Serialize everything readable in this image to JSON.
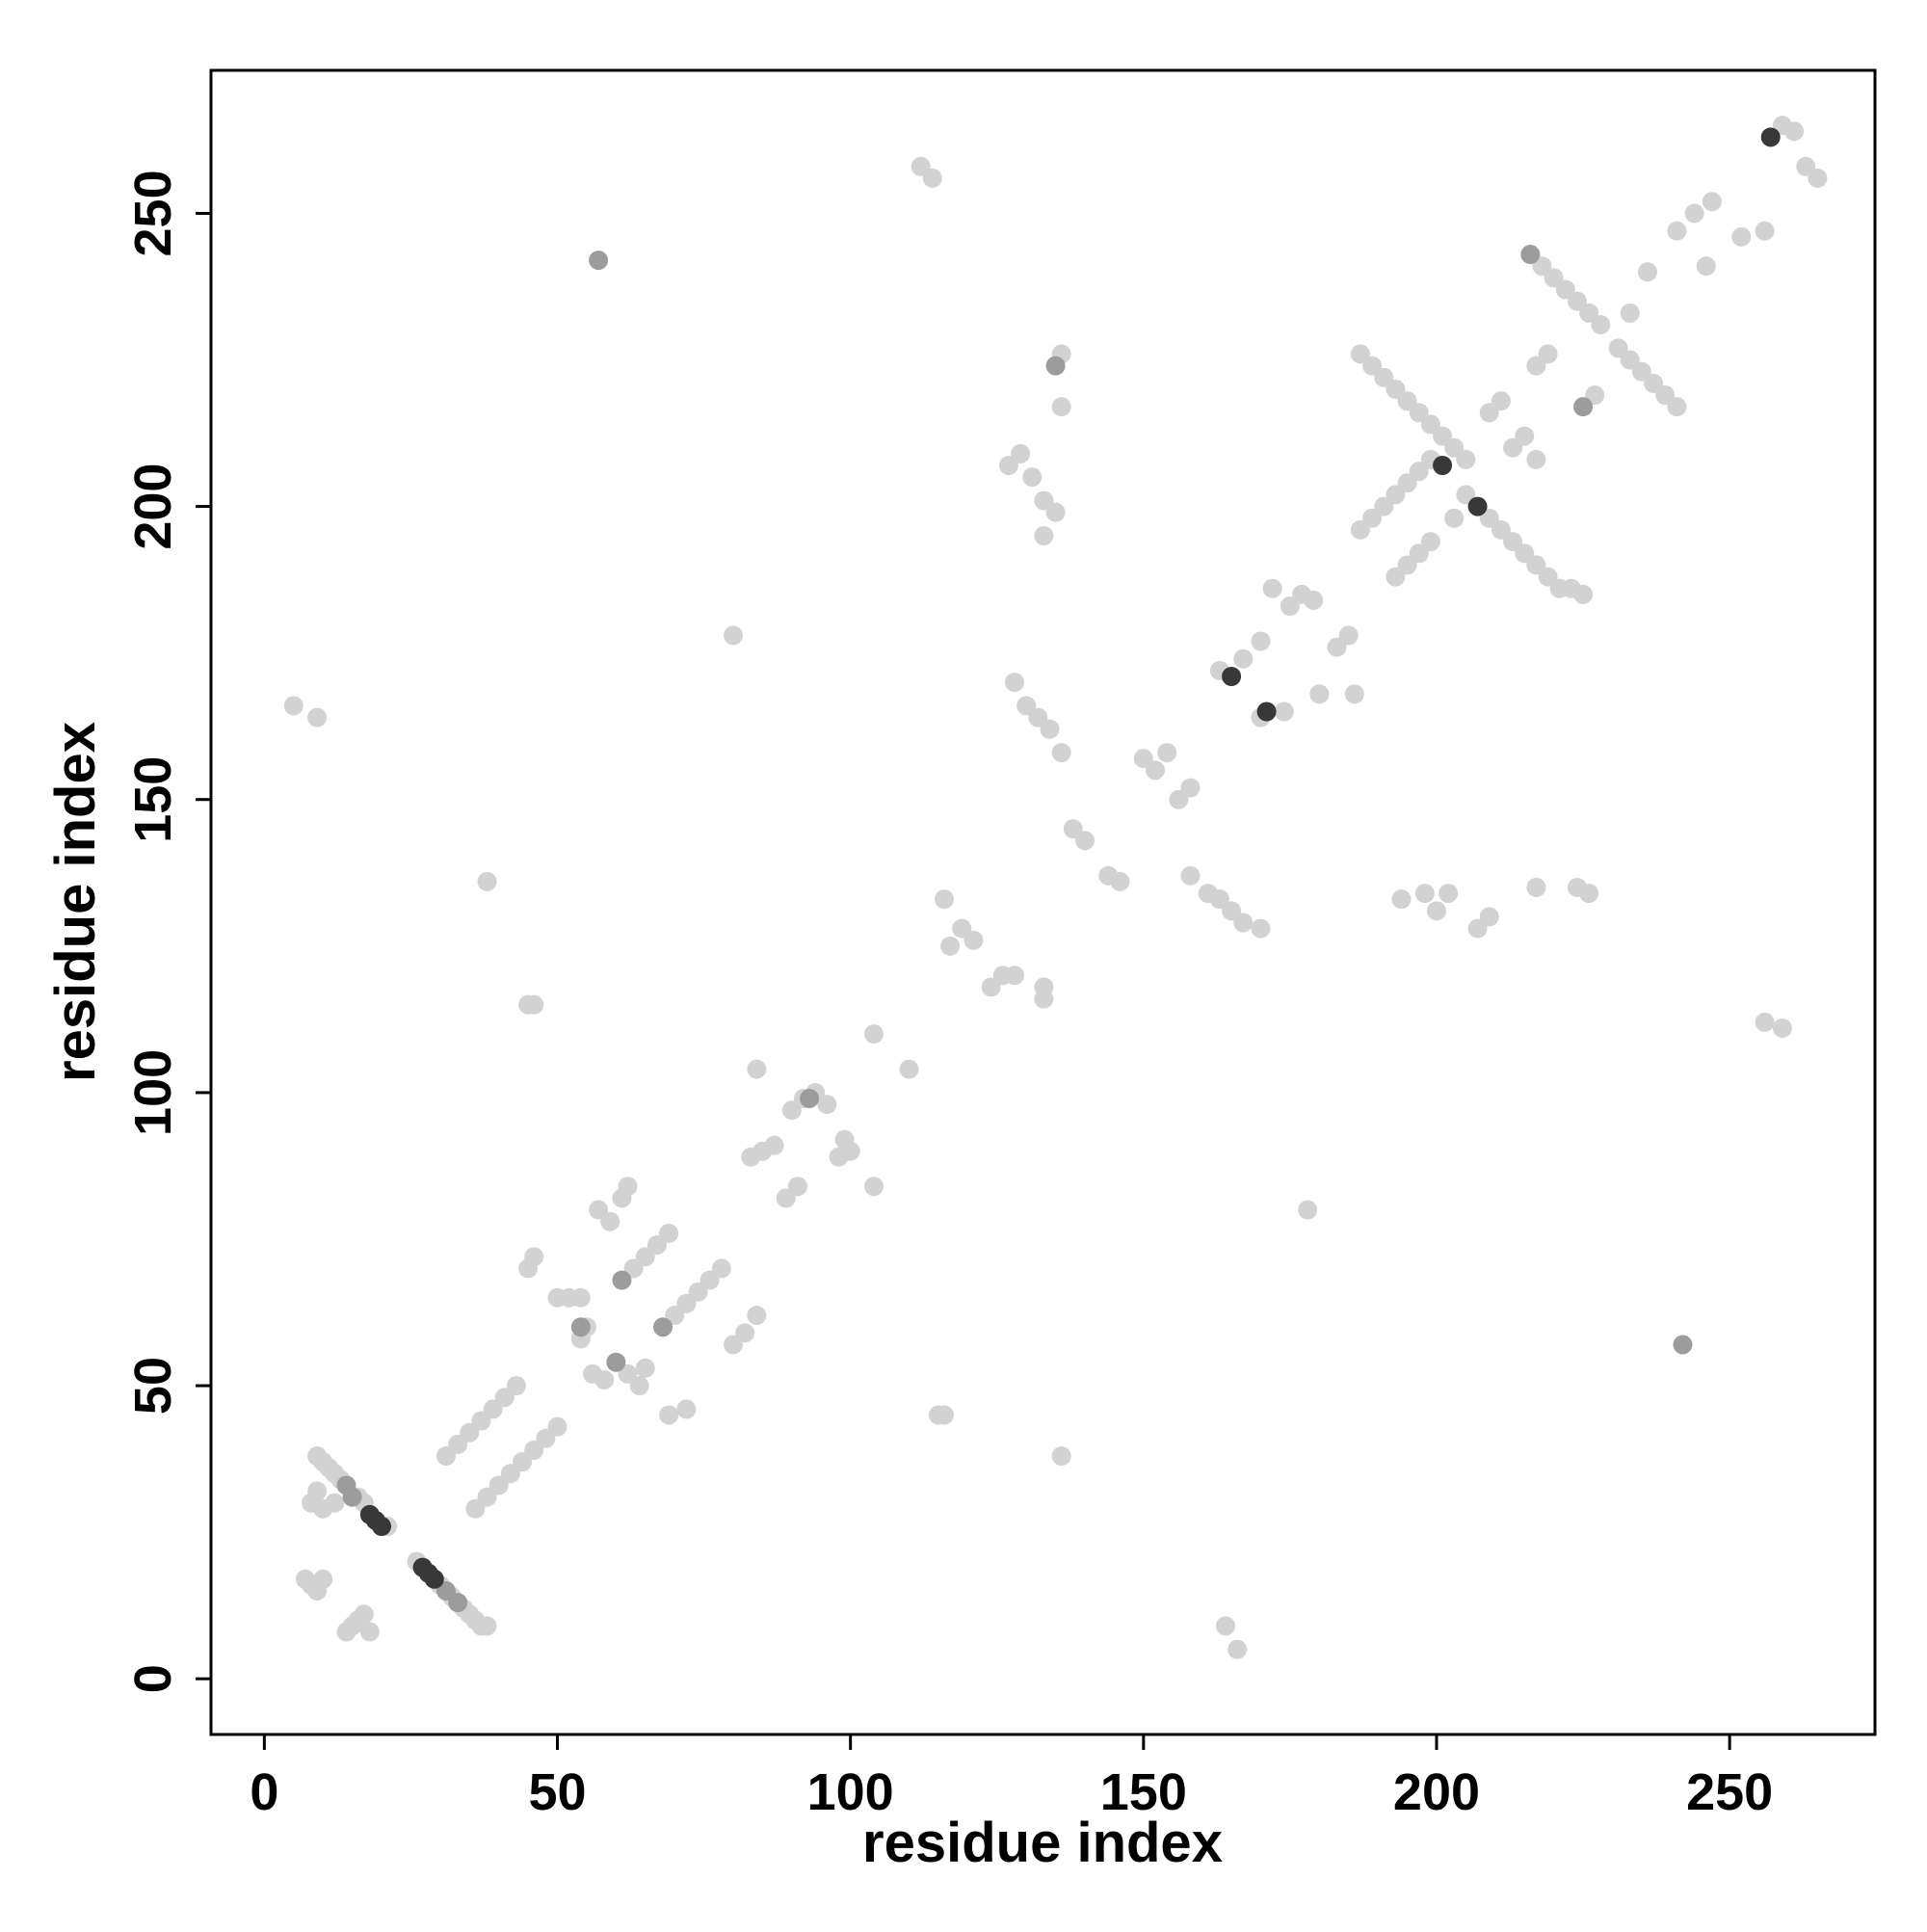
{
  "chart_data": {
    "type": "scatter",
    "xlabel": "residue index",
    "ylabel": "residue index",
    "xlim": [
      -9.1,
      274.8
    ],
    "ylim": [
      -9.5,
      274.4
    ],
    "xticks": [
      0,
      50,
      100,
      150,
      200,
      250
    ],
    "yticks": [
      0,
      50,
      100,
      150,
      200,
      250
    ],
    "grid": false,
    "series": [
      {
        "color": "#d2d2d2",
        "x": [
          9,
          10,
          11,
          12,
          13,
          16,
          17,
          21,
          26,
          30,
          32,
          34,
          35,
          36,
          37,
          38,
          7,
          8,
          9,
          10,
          14,
          15,
          16,
          17,
          18,
          8,
          9,
          10,
          12,
          31,
          33,
          35,
          37,
          39,
          41,
          43,
          36,
          38,
          40,
          42,
          44,
          46,
          48,
          50,
          45,
          46,
          45,
          46,
          115,
          116,
          50,
          52,
          54,
          55,
          54,
          56,
          58,
          62,
          64,
          65,
          57,
          59,
          61,
          62,
          63,
          65,
          67,
          69,
          70,
          72,
          74,
          76,
          78,
          80,
          82,
          84,
          69,
          72,
          38,
          136,
          83,
          85,
          87,
          89,
          91,
          90,
          92,
          94,
          96,
          99,
          100,
          98,
          84,
          104,
          104,
          110,
          80,
          178,
          5,
          9,
          164,
          166,
          112,
          114,
          256,
          259,
          116,
          119,
          121,
          117,
          124,
          126,
          128,
          133,
          133,
          127,
          129,
          131,
          133,
          135,
          133,
          136,
          136,
          128,
          130,
          132,
          134,
          136,
          138,
          140,
          144,
          146,
          150,
          152,
          154,
          156,
          158,
          158,
          161,
          163,
          165,
          167,
          170,
          172,
          175,
          177,
          179,
          163,
          167,
          170,
          174,
          170,
          183,
          185,
          186,
          180,
          187,
          189,
          191,
          193,
          195,
          197,
          199,
          201,
          203,
          205,
          187,
          189,
          191,
          193,
          195,
          197,
          199,
          193,
          195,
          197,
          199,
          203,
          205,
          209,
          211,
          213,
          215,
          217,
          219,
          221,
          223,
          225,
          209,
          211,
          213,
          215,
          217,
          217,
          219,
          218,
          220,
          222,
          224,
          226,
          228,
          227,
          194,
          198,
          200,
          202,
          207,
          209,
          217,
          224,
          226,
          231,
          233,
          235,
          237,
          239,
          241,
          233,
          236,
          241,
          246,
          247,
          252,
          256,
          259,
          263,
          265,
          261,
          244
        ],
        "y": [
          38,
          37,
          36,
          35,
          34,
          31,
          30,
          26,
          20,
          16,
          14,
          12,
          11,
          10,
          9,
          9,
          17,
          16,
          15,
          17,
          8,
          9,
          10,
          11,
          8,
          30,
          32,
          29,
          30,
          38,
          40,
          42,
          44,
          46,
          48,
          50,
          29,
          31,
          33,
          35,
          37,
          39,
          41,
          43,
          70,
          72,
          115,
          115,
          45,
          45,
          65,
          65,
          65,
          60,
          58,
          52,
          51,
          52,
          50,
          53,
          80,
          78,
          82,
          84,
          70,
          72,
          74,
          76,
          62,
          64,
          66,
          68,
          70,
          57,
          59,
          62,
          45,
          46,
          136,
          38,
          89,
          90,
          91,
          82,
          84,
          97,
          99,
          100,
          98,
          92,
          90,
          89,
          104,
          84,
          110,
          104,
          178,
          80,
          166,
          164,
          9,
          5,
          258,
          256,
          112,
          111,
          133,
          128,
          126,
          125,
          118,
          120,
          120,
          118,
          116,
          207,
          209,
          205,
          201,
          199,
          195,
          226,
          217,
          170,
          166,
          164,
          162,
          158,
          145,
          143,
          137,
          136,
          157,
          155,
          158,
          150,
          152,
          137,
          134,
          133,
          131,
          129,
          128,
          186,
          183,
          185,
          184,
          172,
          174,
          164,
          165,
          177,
          176,
          178,
          168,
          168,
          226,
          224,
          222,
          220,
          218,
          216,
          214,
          212,
          210,
          208,
          196,
          198,
          200,
          202,
          204,
          206,
          208,
          188,
          190,
          192,
          194,
          198,
          202,
          198,
          196,
          194,
          192,
          190,
          188,
          186,
          186,
          185,
          216,
          218,
          210,
          212,
          208,
          224,
          226,
          241,
          239,
          237,
          235,
          233,
          231,
          219,
          133,
          134,
          131,
          134,
          128,
          130,
          135,
          135,
          134,
          227,
          225,
          223,
          221,
          219,
          217,
          233,
          240,
          247,
          241,
          252,
          246,
          247,
          265,
          258,
          256,
          264,
          250
        ]
      },
      {
        "color": "#9c9c9c",
        "x": [
          15,
          31,
          54,
          60,
          61,
          68,
          93,
          57,
          242,
          14,
          33,
          135,
          225,
          216
        ],
        "y": [
          31,
          15,
          60,
          54,
          68,
          60,
          99,
          242,
          57,
          33,
          13,
          224,
          217,
          243
        ]
      },
      {
        "color": "#383838",
        "x": [
          18,
          19,
          20,
          27,
          28,
          29,
          165,
          171,
          201,
          207,
          257
        ],
        "y": [
          28,
          27,
          26,
          19,
          18,
          17,
          171,
          165,
          207,
          200,
          263
        ]
      }
    ]
  }
}
